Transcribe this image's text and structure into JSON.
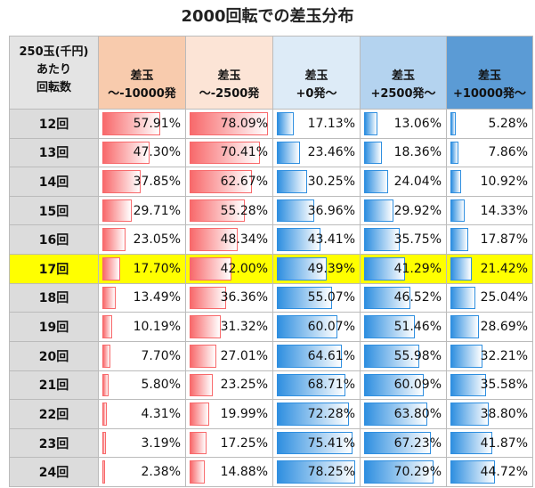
{
  "title": "2000回転での差玉分布",
  "table": {
    "header": [
      [
        "250玉(千円)",
        "あたり",
        "回転数"
      ],
      [
        "差玉",
        "～-10000発"
      ],
      [
        "差玉",
        "～-2500発"
      ],
      [
        "差玉",
        "+0発～"
      ],
      [
        "差玉",
        "+2500発～"
      ],
      [
        "差玉",
        "+10000発～"
      ]
    ],
    "header_colors": [
      "#e4e4e4",
      "#f8cbad",
      "#fce4d6",
      "#ddebf7",
      "#b4d3ef",
      "#5b9bd5"
    ],
    "bar_colors": [
      "#f8696b",
      "#f8696b",
      "#2f8fe0",
      "#2f8fe0",
      "#2f8fe0"
    ],
    "highlight_row": "17回",
    "highlight_color": "#ffff00",
    "rows": [
      [
        "12回",
        "57.91%",
        "78.09%",
        "17.13%",
        "13.06%",
        "5.28%"
      ],
      [
        "13回",
        "47.30%",
        "70.41%",
        "23.46%",
        "18.36%",
        "7.86%"
      ],
      [
        "14回",
        "37.85%",
        "62.67%",
        "30.25%",
        "24.04%",
        "10.92%"
      ],
      [
        "15回",
        "29.71%",
        "55.28%",
        "36.96%",
        "29.92%",
        "14.33%"
      ],
      [
        "16回",
        "23.05%",
        "48.34%",
        "43.41%",
        "35.75%",
        "17.87%"
      ],
      [
        "17回",
        "17.70%",
        "42.00%",
        "49.39%",
        "41.29%",
        "21.42%"
      ],
      [
        "18回",
        "13.49%",
        "36.36%",
        "55.07%",
        "46.52%",
        "25.04%"
      ],
      [
        "19回",
        "10.19%",
        "31.32%",
        "60.07%",
        "51.46%",
        "28.69%"
      ],
      [
        "20回",
        "7.70%",
        "27.01%",
        "64.61%",
        "55.98%",
        "32.21%"
      ],
      [
        "21回",
        "5.80%",
        "23.25%",
        "68.71%",
        "60.09%",
        "35.58%"
      ],
      [
        "22回",
        "4.31%",
        "19.99%",
        "72.28%",
        "63.80%",
        "38.80%"
      ],
      [
        "23回",
        "3.19%",
        "17.25%",
        "75.41%",
        "67.23%",
        "41.87%"
      ],
      [
        "24回",
        "2.38%",
        "14.88%",
        "78.25%",
        "70.29%",
        "44.72%"
      ]
    ]
  }
}
